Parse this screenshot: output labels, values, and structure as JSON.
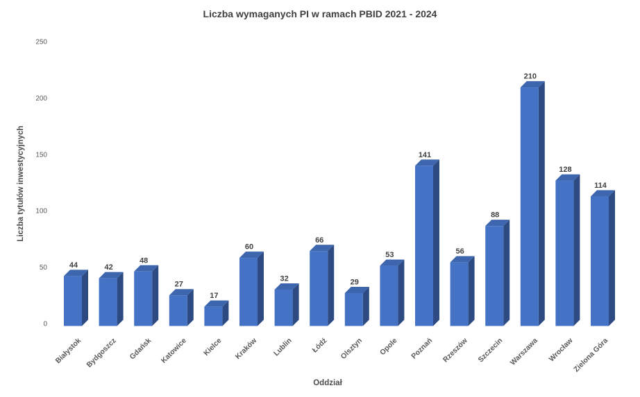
{
  "chart_data": {
    "type": "bar",
    "style": "3d-column",
    "title": "Liczba wymaganych PI w ramach PBID 2021 - 2024",
    "xlabel": "Oddział",
    "ylabel": "Liczba tytułów inwestycyjnych",
    "categories": [
      "Białystok",
      "Bydgoszcz",
      "Gdańsk",
      "Katowice",
      "Kielce",
      "Kraków",
      "Lublin",
      "Łódź",
      "Olsztyn",
      "Opole",
      "Poznań",
      "Rzeszów",
      "Szczecin",
      "Warszawa",
      "Wrocław",
      "Zielona Góra"
    ],
    "values": [
      44,
      42,
      48,
      27,
      17,
      60,
      32,
      66,
      29,
      53,
      141,
      56,
      88,
      210,
      128,
      114
    ],
    "ylim": [
      0,
      250
    ],
    "y_ticks": [
      0,
      50,
      100,
      150,
      200,
      250
    ],
    "grid": false,
    "legend": false,
    "data_labels": true,
    "colors": {
      "bar_front": "#4472c4",
      "bar_top": "#3e66ae",
      "bar_side": "#2d4b82",
      "background": "#ffffff",
      "title_text": "#3f3f3f",
      "axis_text": "#595959",
      "value_label_text": "#404040"
    }
  }
}
